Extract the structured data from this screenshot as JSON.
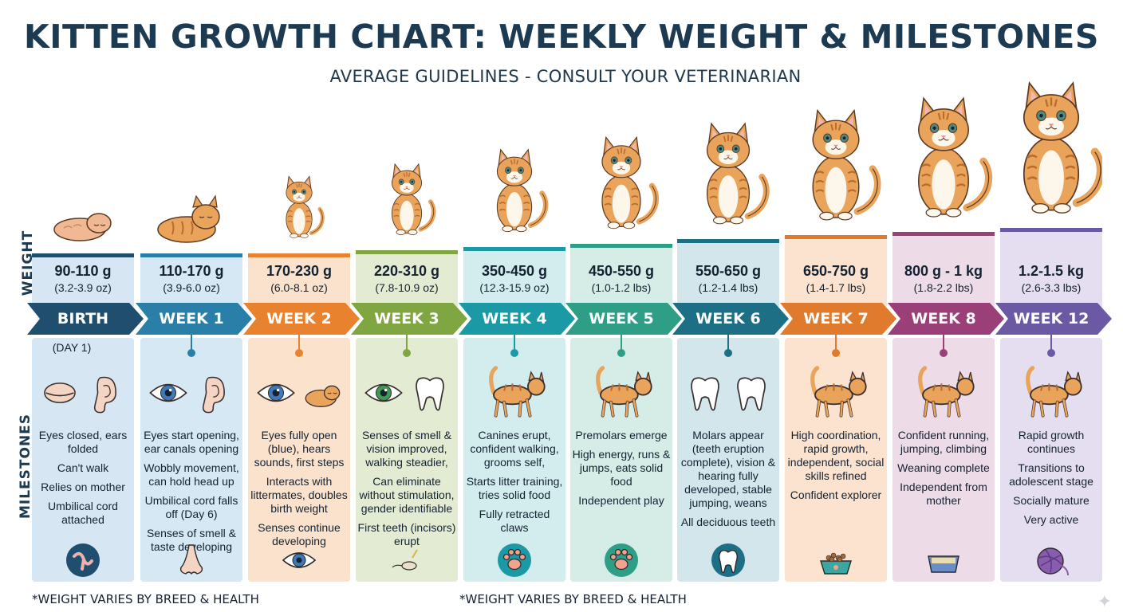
{
  "title": "KITTEN GROWTH CHART: WEEKLY WEIGHT & MILESTONES",
  "subtitle": "AVERAGE GUIDELINES - CONSULT YOUR VETERINARIAN",
  "side_labels": {
    "weight": "WEIGHT",
    "milestones": "MILESTONES"
  },
  "footnotes": [
    "*WEIGHT VARIES BY BREED & HEALTH",
    "*WEIGHT VARIES BY BREED & HEALTH"
  ],
  "stages": [
    {
      "label": "BIRTH",
      "weight": "90-110 g",
      "weight_alt": "(3.2-3.9 oz)",
      "color": "#1f4e6e",
      "box_color": "#d6e6f2",
      "cat_size": 0.36,
      "note": "(DAY 1)",
      "milestones": [
        "Eyes closed, ears folded",
        "Can't walk",
        "Relies on mother",
        "Umbilical cord attached"
      ],
      "icons": [
        "closed-eye-icon",
        "folded-ear-icon"
      ],
      "bottom_icon": "umbilical-cord-icon"
    },
    {
      "label": "WEEK 1",
      "weight": "110-170 g",
      "weight_alt": "(3.9-6.0 oz)",
      "color": "#2a7fa8",
      "box_color": "#d6e8f3",
      "cat_size": 0.44,
      "milestones": [
        "Eyes start opening, ear canals opening",
        "Wobbly movement, can hold head up",
        "Umbilical cord falls off (Day 6)",
        "Senses of smell & taste developing"
      ],
      "icons": [
        "eye-icon",
        "ear-icon"
      ],
      "bottom_icon": "nose-icon"
    },
    {
      "label": "WEEK 2",
      "weight": "170-230 g",
      "weight_alt": "(6.0-8.1 oz)",
      "color": "#e8822f",
      "box_color": "#fbe2cc",
      "cat_size": 0.54,
      "milestones": [
        "Eyes fully open (blue), hears sounds, first steps",
        "Interacts with littermates, doubles birth weight",
        "Senses continue developing"
      ],
      "icons": [
        "blue-eyes-icon",
        "sleeping-kitten-icon"
      ],
      "bottom_icon": "eye-icon"
    },
    {
      "label": "WEEK 3",
      "weight": "220-310 g",
      "weight_alt": "(7.8-10.9 oz)",
      "color": "#7fa640",
      "box_color": "#e3ecd3",
      "cat_size": 0.62,
      "milestones": [
        "Senses of smell & vision improved, walking steadier,",
        "Can eliminate without stimulation, gender identifiable",
        "First teeth (incisors) erupt"
      ],
      "icons": [
        "green-eye-icon",
        "tooth-icon"
      ],
      "bottom_icon": "kitten-mouse-icon"
    },
    {
      "label": "WEEK 4",
      "weight": "350-450 g",
      "weight_alt": "(12.3-15.9 oz)",
      "color": "#1b9aa6",
      "box_color": "#d3ecee",
      "cat_size": 0.72,
      "milestones": [
        "Canines erupt, confident walking, grooms self,",
        "Starts litter training, tries solid food",
        "Fully retracted claws"
      ],
      "icons": [
        "walking-kitten-icon"
      ],
      "bottom_icon": "paw-icon"
    },
    {
      "label": "WEEK 5",
      "weight": "450-550 g",
      "weight_alt": "(1.0-1.2 lbs)",
      "color": "#2e9f86",
      "box_color": "#d5ede6",
      "cat_size": 0.8,
      "milestones": [
        "Premolars emerge",
        "High energy, runs & jumps, eats solid food",
        "Independent play"
      ],
      "icons": [
        "walking-kitten-icon"
      ],
      "bottom_icon": "paw-icon"
    },
    {
      "label": "WEEK 6",
      "weight": "550-650 g",
      "weight_alt": "(1.2-1.4 lbs)",
      "color": "#1d6f86",
      "box_color": "#d2e6ec",
      "cat_size": 0.88,
      "milestones": [
        "Molars appear (teeth eruption complete), vision & hearing fully developed, stable jumping, weans",
        "All deciduous teeth"
      ],
      "icons": [
        "tooth-icon",
        "molar-icon"
      ],
      "bottom_icon": "tooth-icon"
    },
    {
      "label": "WEEK 7",
      "weight": "650-750 g",
      "weight_alt": "(1.4-1.7 lbs)",
      "color": "#e07a2c",
      "box_color": "#fbe3cf",
      "cat_size": 0.96,
      "milestones": [
        "High coordination, rapid growth, independent, social skills refined",
        "Confident explorer"
      ],
      "icons": [
        "walking-cat-icon"
      ],
      "bottom_icon": "food-bowl-icon"
    },
    {
      "label": "WEEK 8",
      "weight": "800 g - 1 kg",
      "weight_alt": "(1.8-2.2 lbs)",
      "color": "#9a3f78",
      "box_color": "#eddbe8",
      "cat_size": 1.04,
      "milestones": [
        "Confident running, jumping, climbing",
        "Weaning complete",
        "Independent from mother"
      ],
      "icons": [
        "walking-cat-icon"
      ],
      "bottom_icon": "litter-box-icon"
    },
    {
      "label": "WEEK 12",
      "weight": "1.2-1.5 kg",
      "weight_alt": "(2.6-3.3 lbs)",
      "color": "#6b5aa3",
      "box_color": "#e4def0",
      "cat_size": 1.14,
      "milestones": [
        "Rapid growth continues",
        "Transitions to adolescent stage",
        "Socially mature",
        "Very active"
      ],
      "icons": [
        "walking-cat-icon"
      ],
      "bottom_icon": "yarn-ball-icon"
    }
  ]
}
